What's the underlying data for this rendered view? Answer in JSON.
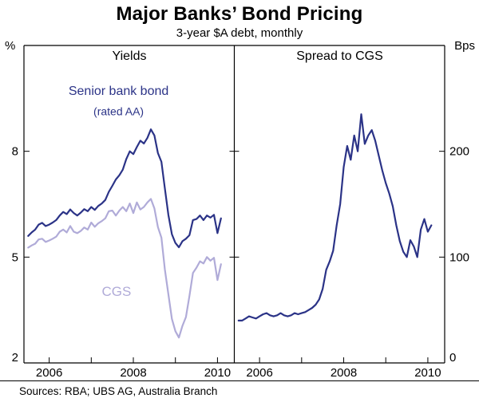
{
  "chart_data": {
    "type": "line",
    "title": "Major Banks’ Bond Pricing",
    "subtitle": "3-year $A debt, monthly",
    "sources": "Sources: RBA; UBS AG, Australia Branch",
    "x_start": 2005.5,
    "x_step_years": 0.0833333,
    "x_range": [
      2005.4,
      2010.4
    ],
    "x_ticks": [
      2006,
      2007,
      2008,
      2009,
      2010
    ],
    "x_tick_labels": [
      "2006",
      "",
      "2008",
      "",
      "2010"
    ],
    "frame_color": "#000000",
    "panels": [
      {
        "title": "Yields",
        "unit": "%",
        "unit_side": "left",
        "ylim": [
          2,
          11
        ],
        "y_ticks": [
          2,
          5,
          8
        ],
        "series": [
          {
            "name": "Senior bank bond (rated AA)",
            "color": "#2b3387",
            "values": [
              5.6,
              5.7,
              5.78,
              5.92,
              5.97,
              5.88,
              5.92,
              5.98,
              6.05,
              6.18,
              6.28,
              6.22,
              6.35,
              6.25,
              6.18,
              6.26,
              6.36,
              6.3,
              6.42,
              6.34,
              6.45,
              6.52,
              6.62,
              6.85,
              7.02,
              7.2,
              7.32,
              7.48,
              7.78,
              8.0,
              7.92,
              8.12,
              8.3,
              8.22,
              8.38,
              8.62,
              8.45,
              7.95,
              7.7,
              6.95,
              6.2,
              5.65,
              5.4,
              5.28,
              5.45,
              5.52,
              5.62,
              6.05,
              6.08,
              6.18,
              6.05,
              6.18,
              6.12,
              6.2,
              5.68,
              6.1
            ]
          },
          {
            "name": "CGS",
            "color": "#b0abd8",
            "values": [
              5.27,
              5.33,
              5.38,
              5.5,
              5.52,
              5.43,
              5.47,
              5.52,
              5.58,
              5.72,
              5.78,
              5.7,
              5.88,
              5.72,
              5.68,
              5.74,
              5.84,
              5.78,
              5.98,
              5.86,
              5.96,
              6.02,
              6.1,
              6.3,
              6.32,
              6.18,
              6.32,
              6.42,
              6.3,
              6.52,
              6.25,
              6.55,
              6.35,
              6.42,
              6.55,
              6.65,
              6.38,
              5.85,
              5.55,
              4.65,
              3.95,
              3.25,
              2.9,
              2.72,
              3.05,
              3.3,
              3.9,
              4.55,
              4.7,
              4.88,
              4.82,
              5.0,
              4.9,
              4.98,
              4.35,
              4.8
            ]
          }
        ],
        "annotations": [
          {
            "text": "Senior bank bond",
            "x": 2007.65,
            "y": 9.6,
            "color": "#2b3387",
            "size": 16
          },
          {
            "text": "(rated AA)",
            "x": 2007.65,
            "y": 9.02,
            "color": "#2b3387",
            "size": 14
          },
          {
            "text": "CGS",
            "x": 2007.6,
            "y": 3.9,
            "color": "#b0abd8",
            "size": 17
          }
        ]
      },
      {
        "title": "Spread to CGS",
        "unit": "Bps",
        "unit_side": "right",
        "ylim": [
          0,
          300
        ],
        "y_ticks": [
          0,
          100,
          200
        ],
        "series": [
          {
            "name": "Spread to CGS",
            "color": "#2b3387",
            "values": [
              40,
              40,
              42,
              44,
              43,
              42,
              44,
              46,
              47,
              45,
              44,
              45,
              47,
              45,
              44,
              45,
              47,
              46,
              47,
              48,
              50,
              52,
              55,
              60,
              70,
              88,
              96,
              106,
              130,
              150,
              185,
              205,
              192,
              215,
              200,
              235,
              207,
              215,
              220,
              210,
              196,
              182,
              170,
              160,
              148,
              130,
              115,
              105,
              100,
              116,
              110,
              100,
              126,
              136,
              124,
              130
            ]
          }
        ],
        "annotations": []
      }
    ]
  }
}
